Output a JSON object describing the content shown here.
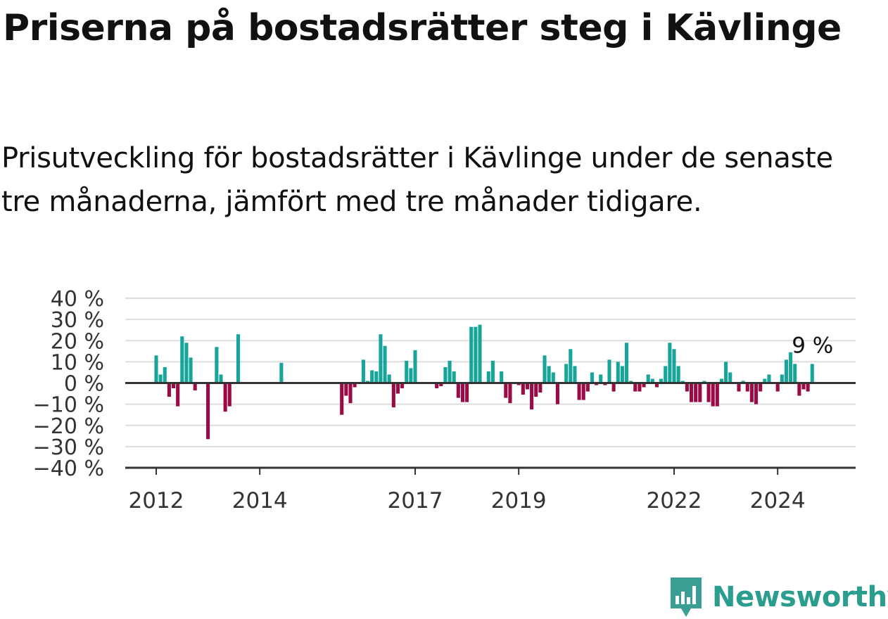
{
  "header": {
    "title": "Priserna på bostadsrätter steg i Kävlinge",
    "subtitle": "Prisutveckling för bostadsrätter i Kävlinge under de senaste tre månaderna, jämfört med tre månader tidigare."
  },
  "brand": {
    "name": "Newsworthy",
    "icon": "newsworthy-logo-icon",
    "color": "#3a9e94"
  },
  "colors": {
    "positive": "#17a59a",
    "negative": "#9a0a45",
    "grid": "#dddddd",
    "axis": "#333333"
  },
  "chart_data": {
    "type": "bar",
    "title": "Priserna på bostadsrätter steg i Kävlinge",
    "subtitle": "Prisutveckling för bostadsrätter i Kävlinge under de senaste tre månaderna, jämfört med tre månader tidigare.",
    "xlabel": "",
    "ylabel": "",
    "unit": "%",
    "ylim": [
      -40,
      40
    ],
    "y_ticks": [
      40,
      30,
      20,
      10,
      0,
      -10,
      -20,
      -30,
      -40
    ],
    "y_tick_labels": [
      "40 %",
      "30 %",
      "20 %",
      "10 %",
      "0 %",
      "−10 %",
      "−20 %",
      "−30 %",
      "−40 %"
    ],
    "x_ticks": [
      2012,
      2014,
      2017,
      2019,
      2022,
      2024
    ],
    "x_tick_labels": [
      "2012",
      "2014",
      "2017",
      "2019",
      "2022",
      "2024"
    ],
    "grid": true,
    "last_value_label": "9 %",
    "series": [
      {
        "values": [
          {
            "x": "2012-01",
            "y": 13
          },
          {
            "x": "2012-02",
            "y": 4
          },
          {
            "x": "2012-03",
            "y": 7.5
          },
          {
            "x": "2012-04",
            "y": -6.5
          },
          {
            "x": "2012-05",
            "y": -2.5
          },
          {
            "x": "2012-06",
            "y": -11
          },
          {
            "x": "2012-07",
            "y": 22
          },
          {
            "x": "2012-08",
            "y": 19
          },
          {
            "x": "2012-09",
            "y": 12
          },
          {
            "x": "2012-10",
            "y": -3.5
          },
          {
            "x": "2013-01",
            "y": -26.5
          },
          {
            "x": "2013-03",
            "y": 17
          },
          {
            "x": "2013-04",
            "y": 4
          },
          {
            "x": "2013-05",
            "y": -13.5
          },
          {
            "x": "2013-06",
            "y": -11
          },
          {
            "x": "2013-08",
            "y": 23
          },
          {
            "x": "2014-06",
            "y": 9.5
          },
          {
            "x": "2015-08",
            "y": -15
          },
          {
            "x": "2015-09",
            "y": -6
          },
          {
            "x": "2015-10",
            "y": -9.5
          },
          {
            "x": "2015-11",
            "y": -2
          },
          {
            "x": "2016-01",
            "y": 11
          },
          {
            "x": "2016-02",
            "y": 1
          },
          {
            "x": "2016-03",
            "y": 6
          },
          {
            "x": "2016-04",
            "y": 5.5
          },
          {
            "x": "2016-05",
            "y": 23
          },
          {
            "x": "2016-06",
            "y": 17.5
          },
          {
            "x": "2016-07",
            "y": 4
          },
          {
            "x": "2016-08",
            "y": -11.5
          },
          {
            "x": "2016-09",
            "y": -5
          },
          {
            "x": "2016-10",
            "y": -2.5
          },
          {
            "x": "2016-11",
            "y": 10.5
          },
          {
            "x": "2016-12",
            "y": 7
          },
          {
            "x": "2017-01",
            "y": 15.5
          },
          {
            "x": "2017-06",
            "y": -2.5
          },
          {
            "x": "2017-07",
            "y": -1.5
          },
          {
            "x": "2017-08",
            "y": 7.5
          },
          {
            "x": "2017-09",
            "y": 10.5
          },
          {
            "x": "2017-10",
            "y": 5.5
          },
          {
            "x": "2017-11",
            "y": -7
          },
          {
            "x": "2017-12",
            "y": -9
          },
          {
            "x": "2018-01",
            "y": -9
          },
          {
            "x": "2018-02",
            "y": 26.5
          },
          {
            "x": "2018-03",
            "y": 26.5
          },
          {
            "x": "2018-04",
            "y": 27.5
          },
          {
            "x": "2018-06",
            "y": 5.5
          },
          {
            "x": "2018-07",
            "y": 10.5
          },
          {
            "x": "2018-09",
            "y": 5.5
          },
          {
            "x": "2018-10",
            "y": -7
          },
          {
            "x": "2018-11",
            "y": -9.5
          },
          {
            "x": "2019-01",
            "y": -1
          },
          {
            "x": "2019-02",
            "y": -5.5
          },
          {
            "x": "2019-03",
            "y": -3
          },
          {
            "x": "2019-04",
            "y": -12.5
          },
          {
            "x": "2019-05",
            "y": -6.5
          },
          {
            "x": "2019-06",
            "y": -4.5
          },
          {
            "x": "2019-07",
            "y": 13
          },
          {
            "x": "2019-08",
            "y": 8
          },
          {
            "x": "2019-09",
            "y": 5
          },
          {
            "x": "2019-10",
            "y": -10
          },
          {
            "x": "2019-12",
            "y": 9
          },
          {
            "x": "2020-01",
            "y": 16
          },
          {
            "x": "2020-02",
            "y": 8
          },
          {
            "x": "2020-03",
            "y": -8
          },
          {
            "x": "2020-04",
            "y": -8
          },
          {
            "x": "2020-05",
            "y": -4
          },
          {
            "x": "2020-06",
            "y": 5
          },
          {
            "x": "2020-07",
            "y": -1
          },
          {
            "x": "2020-08",
            "y": 4
          },
          {
            "x": "2020-09",
            "y": -1
          },
          {
            "x": "2020-10",
            "y": 11
          },
          {
            "x": "2020-11",
            "y": -4
          },
          {
            "x": "2020-12",
            "y": 10
          },
          {
            "x": "2021-01",
            "y": 8
          },
          {
            "x": "2021-02",
            "y": 19
          },
          {
            "x": "2021-03",
            "y": 1
          },
          {
            "x": "2021-04",
            "y": -4
          },
          {
            "x": "2021-05",
            "y": -4
          },
          {
            "x": "2021-06",
            "y": -2
          },
          {
            "x": "2021-07",
            "y": 4
          },
          {
            "x": "2021-08",
            "y": 2
          },
          {
            "x": "2021-09",
            "y": -2
          },
          {
            "x": "2021-10",
            "y": 2
          },
          {
            "x": "2021-11",
            "y": 8
          },
          {
            "x": "2021-12",
            "y": 19
          },
          {
            "x": "2022-01",
            "y": 16
          },
          {
            "x": "2022-02",
            "y": 8
          },
          {
            "x": "2022-03",
            "y": 1
          },
          {
            "x": "2022-04",
            "y": -4
          },
          {
            "x": "2022-05",
            "y": -9
          },
          {
            "x": "2022-06",
            "y": -9
          },
          {
            "x": "2022-07",
            "y": -9
          },
          {
            "x": "2022-08",
            "y": 1
          },
          {
            "x": "2022-09",
            "y": -9
          },
          {
            "x": "2022-10",
            "y": -11
          },
          {
            "x": "2022-11",
            "y": -11
          },
          {
            "x": "2022-12",
            "y": 2
          },
          {
            "x": "2023-01",
            "y": 10
          },
          {
            "x": "2023-02",
            "y": 5
          },
          {
            "x": "2023-04",
            "y": -4
          },
          {
            "x": "2023-05",
            "y": 1
          },
          {
            "x": "2023-06",
            "y": -4
          },
          {
            "x": "2023-07",
            "y": -9
          },
          {
            "x": "2023-08",
            "y": -10
          },
          {
            "x": "2023-09",
            "y": -4
          },
          {
            "x": "2023-10",
            "y": 2
          },
          {
            "x": "2023-11",
            "y": 4
          },
          {
            "x": "2024-01",
            "y": -4
          },
          {
            "x": "2024-02",
            "y": 4
          },
          {
            "x": "2024-03",
            "y": 11
          },
          {
            "x": "2024-04",
            "y": 14.5
          },
          {
            "x": "2024-05",
            "y": 9
          },
          {
            "x": "2024-06",
            "y": -6
          },
          {
            "x": "2024-07",
            "y": -3
          },
          {
            "x": "2024-08",
            "y": -4
          },
          {
            "x": "2024-09",
            "y": 9
          }
        ]
      }
    ]
  }
}
